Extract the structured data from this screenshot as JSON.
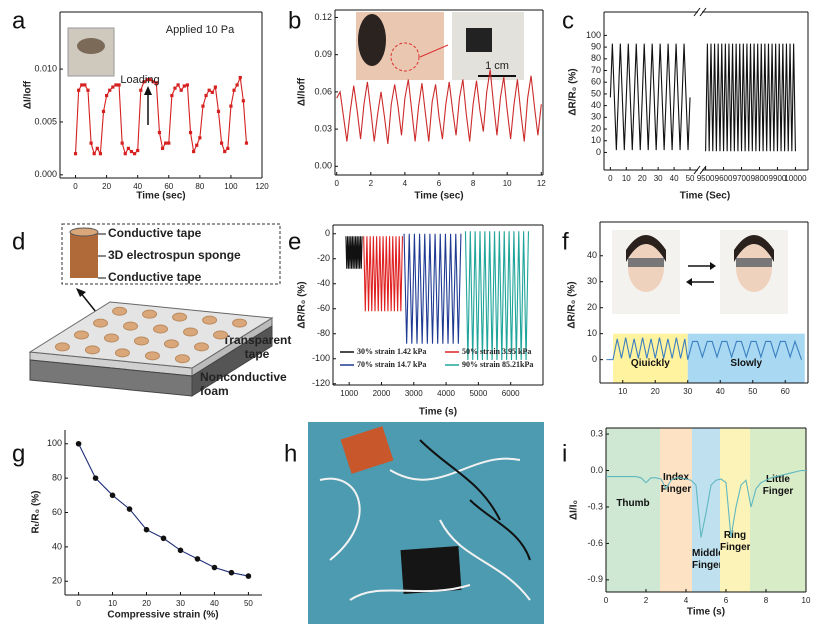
{
  "chart_data": [
    {
      "type": "line",
      "panel": "a",
      "xlabel": "Time (sec)",
      "ylabel": "ΔI/Ioff",
      "annotations": [
        "Applied 10 Pa",
        "Loading"
      ],
      "frame": true,
      "xlim": [
        -10,
        120
      ],
      "ylim": [
        -0.0003,
        0.0154
      ],
      "xticks": [
        0,
        20,
        40,
        60,
        80,
        100,
        120
      ],
      "yticks": [
        {
          "value": 0,
          "label": "0.000"
        },
        {
          "value": 0.005,
          "label": "0.005"
        },
        {
          "value": 0.01,
          "label": "0.010"
        }
      ],
      "x": [
        0,
        2,
        4,
        6,
        8,
        10,
        12,
        14,
        16,
        18,
        20,
        22,
        24,
        26,
        28,
        30,
        32,
        34,
        36,
        38,
        40,
        42,
        44,
        46,
        48,
        50,
        52,
        54,
        56,
        58,
        60,
        62,
        64,
        66,
        68,
        70,
        72,
        74,
        76,
        78,
        80,
        82,
        84,
        86,
        88,
        90,
        92,
        94,
        96,
        98,
        100,
        102,
        104,
        106,
        108,
        110
      ],
      "series": [
        {
          "color": "#d62020",
          "marker": "square",
          "values": [
            0.002,
            0.008,
            0.0085,
            0.0085,
            0.008,
            0.003,
            0.002,
            0.0025,
            0.002,
            0.006,
            0.0075,
            0.008,
            0.0083,
            0.0085,
            0.0085,
            0.003,
            0.002,
            0.0025,
            0.0022,
            0.002,
            0.0023,
            0.008,
            0.0088,
            0.009,
            0.009,
            0.0088,
            0.0087,
            0.004,
            0.0025,
            0.003,
            0.003,
            0.0075,
            0.0082,
            0.0085,
            0.008,
            0.0084,
            0.0085,
            0.004,
            0.0022,
            0.0028,
            0.0035,
            0.0065,
            0.0075,
            0.008,
            0.0078,
            0.0083,
            0.006,
            0.003,
            0.0022,
            0.0025,
            0.0065,
            0.008,
            0.0085,
            0.0092,
            0.007,
            0.003
          ]
        }
      ]
    },
    {
      "type": "line",
      "panel": "b",
      "xlabel": "Time (sec)",
      "ylabel": "ΔI/Ioff",
      "annotations": [
        "1 cm"
      ],
      "frame": true,
      "xlim": [
        -0.1,
        12.1
      ],
      "ylim": [
        -0.007,
        0.126
      ],
      "xticks": [
        0,
        2,
        4,
        6,
        8,
        10,
        12
      ],
      "yticks": [
        {
          "value": 0,
          "label": "0.00"
        },
        {
          "value": 0.03,
          "label": "0.03"
        },
        {
          "value": 0.06,
          "label": "0.06"
        },
        {
          "value": 0.09,
          "label": "0.09"
        },
        {
          "value": 0.12,
          "label": "0.12"
        }
      ],
      "x": [
        0,
        0.2,
        0.4,
        0.6,
        0.8,
        1,
        1.2,
        1.4,
        1.6,
        1.8,
        2,
        2.2,
        2.4,
        2.6,
        2.8,
        3,
        3.2,
        3.4,
        3.6,
        3.8,
        4,
        4.2,
        4.4,
        4.6,
        4.8,
        5,
        5.2,
        5.4,
        5.6,
        5.8,
        6,
        6.2,
        6.4,
        6.6,
        6.8,
        7,
        7.2,
        7.4,
        7.6,
        7.8,
        8,
        8.2,
        8.4,
        8.6,
        8.8,
        9,
        9.2,
        9.4,
        9.6,
        9.8,
        10,
        10.2,
        10.4,
        10.6,
        10.8,
        11,
        11.2,
        11.4,
        11.6,
        11.8,
        12
      ],
      "series": [
        {
          "color": "#cc2a2a",
          "values": [
            0.055,
            0.06,
            0.04,
            0.02,
            0.045,
            0.065,
            0.045,
            0.022,
            0.05,
            0.068,
            0.045,
            0.02,
            0.042,
            0.06,
            0.04,
            0.018,
            0.05,
            0.066,
            0.048,
            0.025,
            0.055,
            0.07,
            0.045,
            0.02,
            0.048,
            0.067,
            0.043,
            0.02,
            0.052,
            0.066,
            0.04,
            0.022,
            0.05,
            0.068,
            0.045,
            0.025,
            0.055,
            0.07,
            0.042,
            0.02,
            0.05,
            0.069,
            0.045,
            0.028,
            0.06,
            0.078,
            0.05,
            0.025,
            0.055,
            0.072,
            0.045,
            0.022,
            0.05,
            0.07,
            0.043,
            0.02,
            0.055,
            0.073,
            0.048,
            0.025,
            0.05
          ]
        }
      ]
    },
    {
      "type": "line",
      "panel": "c",
      "xlabel": "Time (Sec)",
      "ylabel": "ΔR/R₀ (%)",
      "frame": true,
      "xlim": [
        -4,
        55
      ],
      "ylim": [
        -15,
        120
      ],
      "xticks": [
        0,
        10,
        20,
        30,
        40,
        50
      ],
      "yticks": [
        0,
        10,
        20,
        30,
        40,
        50,
        60,
        70,
        80,
        90,
        100
      ],
      "x": [
        0,
        1.25,
        2.5,
        3.75,
        5,
        6.25,
        7.5,
        8.75,
        10,
        11.25,
        12.5,
        13.75,
        15,
        16.25,
        17.5,
        18.75,
        20,
        21.25,
        22.5,
        23.75,
        25,
        26.25,
        27.5,
        28.75,
        30,
        31.25,
        32.5,
        33.75,
        35,
        36.25,
        37.5,
        38.75,
        40,
        41.25,
        42.5,
        43.75,
        45,
        46.25,
        47.5,
        48.75,
        50
      ],
      "series": [
        {
          "color": "#111111",
          "values": [
            47,
            93,
            47,
            2,
            47,
            93,
            47,
            2,
            47,
            93,
            47,
            2,
            47,
            93,
            47,
            2,
            47,
            93,
            47,
            2,
            47,
            93,
            47,
            2,
            47,
            93,
            47,
            2,
            47,
            93,
            47,
            2,
            47,
            93,
            47,
            2,
            47,
            93,
            47,
            2,
            47
          ]
        }
      ]
    },
    {
      "type": "line",
      "frame": true,
      "xlim": [
        9480,
        10070
      ],
      "ylim": [
        -15,
        120
      ],
      "xticks": [
        9500,
        9600,
        9700,
        9800,
        9900,
        10000
      ],
      "x": [
        9500,
        9510,
        9520,
        9530,
        9540,
        9550,
        9560,
        9570,
        9580,
        9590,
        9600,
        9610,
        9620,
        9630,
        9640,
        9650,
        9660,
        9670,
        9680,
        9690,
        9700,
        9710,
        9720,
        9730,
        9740,
        9750,
        9760,
        9770,
        9780,
        9790,
        9800,
        9810,
        9820,
        9830,
        9840,
        9850,
        9860,
        9870,
        9880,
        9890,
        9900,
        9910,
        9920,
        9930,
        9940,
        9950,
        9960,
        9970,
        9980,
        9990,
        10000
      ],
      "series": [
        {
          "color": "#111111",
          "values": [
            1,
            93,
            1,
            93,
            1,
            93,
            1,
            93,
            1,
            93,
            1,
            93,
            1,
            93,
            1,
            93,
            1,
            93,
            1,
            93,
            1,
            93,
            1,
            93,
            1,
            93,
            1,
            93,
            1,
            93,
            1,
            93,
            1,
            93,
            1,
            93,
            1,
            93,
            1,
            93,
            1,
            93,
            1,
            93,
            1,
            93,
            1,
            93,
            1,
            93,
            1
          ]
        }
      ]
    },
    {
      "type": "line",
      "panel": "e",
      "xlabel": "Time (s)",
      "ylabel": "ΔR/R₀ (%)",
      "frame": true,
      "legend": "lower center",
      "xlim": [
        500,
        7000
      ],
      "ylim": [
        -121,
        7
      ],
      "xticks": [
        1000,
        2000,
        3000,
        4000,
        5000,
        6000
      ],
      "yticks": [
        -120,
        -100,
        -80,
        -60,
        -40,
        -20,
        0
      ],
      "series": [
        {
          "name": "30% strain 1.42 kPa",
          "color": "#111111",
          "x": [
            900,
            925,
            950,
            975,
            1000,
            1025,
            1050,
            1075,
            1100,
            1125,
            1150,
            1175,
            1200,
            1225,
            1250,
            1275,
            1300,
            1325,
            1350,
            1375,
            1400
          ],
          "values": [
            -2,
            -28,
            -2,
            -28,
            -2,
            -28,
            -2,
            -28,
            -2,
            -28,
            -2,
            -28,
            -2,
            -28,
            -2,
            -28,
            -2,
            -28,
            -2,
            -28,
            -2
          ]
        },
        {
          "name": "50% strain 3.95 kPa",
          "color": "#e02020",
          "x": [
            1450,
            1500,
            1550,
            1600,
            1650,
            1700,
            1750,
            1800,
            1850,
            1900,
            1950,
            2000,
            2050,
            2100,
            2150,
            2200,
            2250,
            2300,
            2350,
            2400,
            2450,
            2500,
            2550,
            2600,
            2650
          ],
          "values": [
            -2,
            -62,
            -2,
            -62,
            -2,
            -62,
            -2,
            -62,
            -2,
            -62,
            -2,
            -62,
            -2,
            -62,
            -2,
            -62,
            -2,
            -62,
            -2,
            -62,
            -2,
            -62,
            -2,
            -62,
            -2
          ]
        },
        {
          "name": "70% strain 14.7 kPa",
          "color": "#1f3a93",
          "x": [
            2700,
            2780,
            2860,
            2940,
            3020,
            3100,
            3180,
            3260,
            3340,
            3420,
            3500,
            3580,
            3660,
            3740,
            3820,
            3900,
            3980,
            4060,
            4140,
            4220,
            4300,
            4380,
            4460
          ],
          "values": [
            0,
            -88,
            0,
            -88,
            0,
            -88,
            0,
            -88,
            0,
            -88,
            0,
            -88,
            0,
            -88,
            0,
            -88,
            0,
            -88,
            0,
            -88,
            0,
            -88,
            0
          ]
        },
        {
          "name": "90% strain 85.21kPa",
          "color": "#1fa59a",
          "x": [
            4600,
            4675,
            4750,
            4825,
            4900,
            4975,
            5050,
            5125,
            5200,
            5275,
            5350,
            5425,
            5500,
            5575,
            5650,
            5725,
            5800,
            5875,
            5950,
            6025,
            6100,
            6175,
            6250,
            6325,
            6400,
            6475,
            6550
          ],
          "values": [
            2,
            -101,
            2,
            -101,
            2,
            -101,
            2,
            -101,
            2,
            -101,
            2,
            -101,
            2,
            -101,
            2,
            -101,
            2,
            -101,
            2,
            -101,
            2,
            -101,
            2,
            -101,
            2,
            -101,
            2
          ]
        }
      ]
    },
    {
      "type": "line",
      "panel": "f",
      "ylabel": "ΔR/R₀ (%)",
      "frame": true,
      "xlim": [
        3,
        67
      ],
      "ylim": [
        -9,
        53
      ],
      "xticks": [
        10,
        20,
        30,
        40,
        50,
        60
      ],
      "yticks": [
        0,
        10,
        20,
        30,
        40
      ],
      "bands": [
        {
          "from": 7,
          "to": 30,
          "top": 10,
          "color": "#fff3a0",
          "label": "Qiuickly"
        },
        {
          "from": 30,
          "to": 66,
          "top": 10,
          "color": "#a9d9f2",
          "label": "Slowly"
        }
      ],
      "x": [
        5,
        7,
        8.3,
        9.6,
        10.9,
        12.2,
        13.5,
        14.8,
        16.1,
        17.4,
        18.7,
        20,
        21.3,
        22.6,
        23.9,
        25.2,
        26.5,
        27.8,
        29.1,
        30,
        31.5,
        33,
        34.5,
        36,
        37.5,
        39,
        40.5,
        42,
        43.5,
        45,
        46.5,
        48,
        49.5,
        51,
        52.5,
        54,
        55.5,
        57,
        58.5,
        60,
        61.5,
        63,
        65
      ],
      "series": [
        {
          "color": "#3a7fc0",
          "values": [
            0,
            0,
            8,
            0.5,
            8.5,
            0.5,
            8,
            0.5,
            8.5,
            0.5,
            8,
            0.5,
            8.5,
            0.5,
            8,
            0.5,
            8.5,
            0.5,
            8,
            0,
            7,
            7,
            1,
            7,
            7,
            1,
            7,
            7,
            1,
            7,
            7,
            1,
            7,
            7,
            1,
            7,
            7,
            1,
            7,
            7,
            1,
            7,
            0
          ]
        }
      ]
    },
    {
      "type": "line",
      "panel": "g",
      "xlabel": "Compressive strain (%)",
      "ylabel": "Rₜ/R₀ (%)",
      "frame": false,
      "xlim": [
        -4,
        54
      ],
      "ylim": [
        12,
        108
      ],
      "xticks": [
        0,
        10,
        20,
        30,
        40,
        50
      ],
      "yticks": [
        20,
        40,
        60,
        80,
        100
      ],
      "x": [
        0,
        5,
        10,
        15,
        20,
        25,
        30,
        35,
        40,
        45,
        50
      ],
      "series": [
        {
          "color": "#1f2f7a",
          "marker": "circle",
          "marker_color": "#111111",
          "values": [
            100,
            80,
            70,
            62,
            50,
            45,
            38,
            33,
            28,
            25,
            23
          ]
        }
      ]
    },
    {
      "type": "line",
      "panel": "i",
      "xlabel": "Time (s)",
      "ylabel": "ΔI/I₀",
      "frame": true,
      "xlim": [
        0,
        10
      ],
      "ylim": [
        -1,
        0.35
      ],
      "xticks": [
        0,
        2,
        4,
        6,
        8,
        10
      ],
      "yticks": [
        -0.9,
        -0.6,
        -0.3,
        {
          "value": 0,
          "label": "0.0"
        },
        0.3
      ],
      "bands": [
        {
          "from": 0,
          "to": 2.7,
          "color": "#cfe8d3",
          "label": "Thumb"
        },
        {
          "from": 2.7,
          "to": 4.3,
          "color": "#fde3c4",
          "label": "Index Finger"
        },
        {
          "from": 4.3,
          "to": 5.7,
          "color": "#bfe0ee",
          "label": "Middle Finger"
        },
        {
          "from": 5.7,
          "to": 7.2,
          "color": "#fbf3b8",
          "label": "Ring Finger"
        },
        {
          "from": 7.2,
          "to": 10,
          "color": "#d8ecc8",
          "label": "Little Finger"
        }
      ],
      "x": [
        0,
        0.25,
        0.5,
        0.75,
        1,
        1.25,
        1.5,
        1.75,
        2,
        2.25,
        2.5,
        2.75,
        3,
        3.25,
        3.5,
        3.75,
        4,
        4.25,
        4.5,
        4.75,
        5,
        5.25,
        5.5,
        5.75,
        6,
        6.25,
        6.5,
        6.75,
        7,
        7.25,
        7.5,
        7.75,
        8,
        8.25,
        8.5,
        8.75,
        9,
        9.25,
        9.5,
        9.75,
        10
      ],
      "series": [
        {
          "color": "#5fb8c0",
          "values": [
            -0.05,
            -0.05,
            -0.05,
            -0.05,
            -0.05,
            -0.05,
            -0.05,
            -0.06,
            -0.1,
            -0.06,
            -0.06,
            -0.07,
            -0.15,
            -0.08,
            -0.06,
            -0.06,
            -0.07,
            -0.08,
            -0.12,
            -0.55,
            -0.35,
            -0.12,
            -0.08,
            -0.07,
            -0.1,
            -0.55,
            -0.3,
            -0.12,
            -0.08,
            -0.3,
            -0.15,
            -0.1,
            -0.08,
            -0.06,
            -0.05,
            -0.04,
            -0.03,
            -0.02,
            -0.01,
            0,
            0
          ]
        }
      ]
    }
  ],
  "figures": [
    {
      "panel": "d",
      "labels": [
        "Conductive tape",
        "3D electrospun sponge",
        "Conductive tape",
        "Transparent tape",
        "Nonconductive foam"
      ]
    },
    {
      "panel": "h"
    }
  ]
}
